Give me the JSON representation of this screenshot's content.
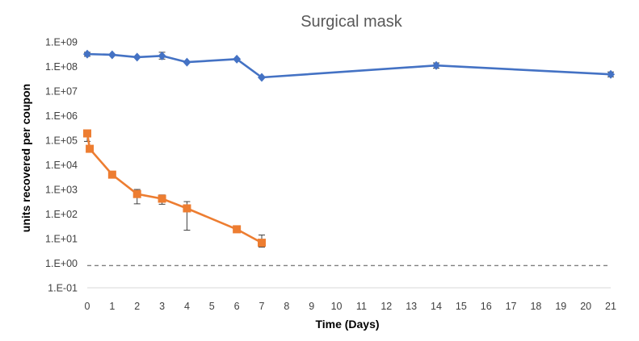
{
  "chart_data": {
    "type": "line",
    "title": "Surgical mask",
    "xlabel": "Time (Days)",
    "ylabel": "units recovered per coupon",
    "x_ticks": [
      "0",
      "1",
      "2",
      "3",
      "4",
      "5",
      "6",
      "7",
      "8",
      "9",
      "10",
      "11",
      "12",
      "13",
      "14",
      "15",
      "16",
      "17",
      "18",
      "19",
      "20",
      "21"
    ],
    "xlim": [
      0,
      21
    ],
    "y_scale": "log",
    "ylim": [
      0.1,
      1000000000
    ],
    "y_ticks": [
      {
        "value": 1000000000,
        "label": "1.E+09"
      },
      {
        "value": 100000000,
        "label": "1.E+08"
      },
      {
        "value": 10000000,
        "label": "1.E+07"
      },
      {
        "value": 1000000,
        "label": "1.E+06"
      },
      {
        "value": 100000,
        "label": "1.E+05"
      },
      {
        "value": 10000,
        "label": "1.E+04"
      },
      {
        "value": 1000,
        "label": "1.E+03"
      },
      {
        "value": 100,
        "label": "1.E+02"
      },
      {
        "value": 10,
        "label": "1.E+01"
      },
      {
        "value": 1,
        "label": "1.E+00"
      },
      {
        "value": 0.1,
        "label": "1.E-01"
      }
    ],
    "grid": false,
    "legend": "none",
    "series": [
      {
        "color": "#4472C4",
        "marker": "diamond",
        "points": [
          {
            "x": 0,
            "y": 320000000,
            "err_low": 260000000,
            "err_high": 380000000
          },
          {
            "x": 1,
            "y": 300000000
          },
          {
            "x": 2,
            "y": 240000000
          },
          {
            "x": 3,
            "y": 270000000,
            "err_low": 200000000,
            "err_high": 380000000
          },
          {
            "x": 4,
            "y": 150000000
          },
          {
            "x": 6,
            "y": 200000000
          },
          {
            "x": 7,
            "y": 36000000
          },
          {
            "x": 14,
            "y": 110000000,
            "err_low": 85000000,
            "err_high": 140000000
          },
          {
            "x": 21,
            "y": 48000000,
            "err_low": 38000000,
            "err_high": 60000000
          }
        ]
      },
      {
        "color": "#ED7D31",
        "marker": "square",
        "points": [
          {
            "x": 0,
            "y": 190000,
            "err_low": 90000,
            "err_high": 250000
          },
          {
            "x": 0.1,
            "y": 45000
          },
          {
            "x": 1,
            "y": 4000
          },
          {
            "x": 2,
            "y": 650,
            "err_low": 260,
            "err_high": 1000
          },
          {
            "x": 3,
            "y": 420,
            "err_low": 250,
            "err_high": 600
          },
          {
            "x": 4,
            "y": 170,
            "err_low": 22,
            "err_high": 320
          },
          {
            "x": 6,
            "y": 24,
            "err_low": 18,
            "err_high": 30
          },
          {
            "x": 7,
            "y": 6.8,
            "err_low": 4.5,
            "err_high": 14
          }
        ]
      }
    ],
    "reference_line": {
      "y": 0.8,
      "style": "dashed",
      "color": "#7f7f7f"
    }
  }
}
